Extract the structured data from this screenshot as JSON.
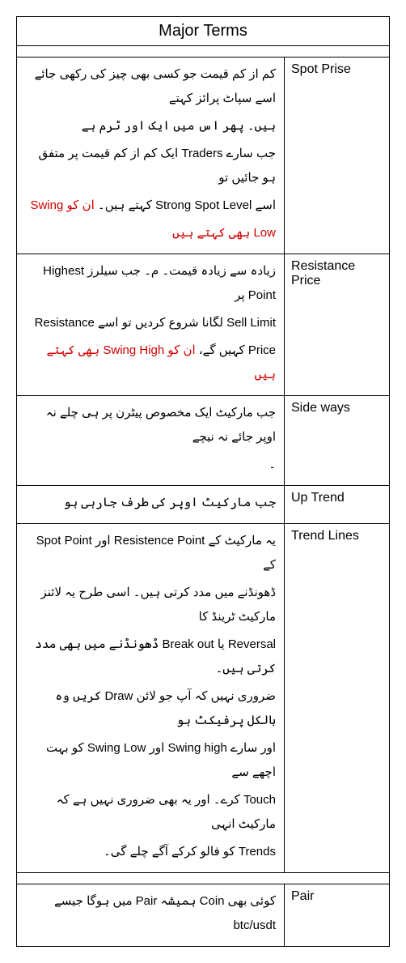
{
  "title": "Major Terms",
  "colors": {
    "border": "#000000",
    "background": "#ffffff",
    "text": "#000000",
    "highlight": "#d00000"
  },
  "rows": [
    {
      "term": "Spot Prise",
      "lines": [
        {
          "segments": [
            {
              "text": "کم از کم قیمت جو کسی بھی چیز کی رکھی جائے اسے سپاٹ پرائز کہتے"
            }
          ]
        },
        {
          "segments": [
            {
              "text": "ہیں۔ پھر اس میں ایک اور ٹرم ہے"
            }
          ]
        },
        {
          "segments": [
            {
              "text": "جب سارے Traders ایک کم از کم قیمت پر متفق ہو جائیں تو"
            }
          ]
        },
        {
          "segments": [
            {
              "text": "اسے Strong Spot Level کہتے ہیں۔ "
            },
            {
              "text": "ان کو Swing",
              "color": "red"
            }
          ]
        },
        {
          "segments": [
            {
              "text": "Low بھی کہتے ہیں",
              "color": "red"
            }
          ]
        }
      ]
    },
    {
      "term": "Resistance Price",
      "lines": [
        {
          "segments": [
            {
              "text": "زیادہ سے زیادہ قیمت۔ م۔ جب سیلرز Highest Point پر"
            }
          ]
        },
        {
          "segments": [
            {
              "text": "Sell Limit لگانا شروع کردیں تو اسے Resistance"
            }
          ]
        },
        {
          "segments": [
            {
              "text": "Price کہیں گے، "
            },
            {
              "text": "ان کو Swing High بھی کہتے ہیں",
              "color": "red"
            }
          ]
        }
      ]
    },
    {
      "term": "Side ways",
      "lines": [
        {
          "segments": [
            {
              "text": "جب مارکیٹ ایک مخصوص پیٹرن پر ہی چلے نہ اوپر جائے نہ نیچے"
            }
          ]
        },
        {
          "segments": [
            {
              "text": "۔"
            }
          ]
        }
      ]
    },
    {
      "term": "Up Trend",
      "lines": [
        {
          "segments": [
            {
              "text": "جب مارکیٹ اوپر کی طرف جارہی ہو"
            }
          ]
        }
      ]
    },
    {
      "term": "Trend Lines",
      "lines": [
        {
          "segments": [
            {
              "text": "یہ مارکیٹ کے Resistence Point اور Spot Point کے"
            }
          ]
        },
        {
          "segments": [
            {
              "text": "ڈھونڈنے میں مدد کرتی ہیں۔ اسی طرح یہ لائنز مارکیٹ ٹرینڈ کا"
            }
          ]
        },
        {
          "segments": [
            {
              "text": "Reversal یا Break out ڈھونڈنے میں بھی مدد کرتی ہیں۔"
            }
          ]
        },
        {
          "segments": [
            {
              "text": "ضروری نہیں کہ آپ جو لائن Draw کریں وہ بالکل پرفیکٹ ہو"
            }
          ]
        },
        {
          "segments": [
            {
              "text": "اور سارے Swing high اور Swing Low کو بہت اچھے سے"
            }
          ]
        },
        {
          "segments": [
            {
              "text": "Touch کرے۔ اور یہ بھی ضروری نہیں ہے کہ مارکیٹ انہی"
            }
          ]
        },
        {
          "segments": [
            {
              "text": "Trends کو فالو کرکے آگے چلے گی۔"
            }
          ]
        }
      ]
    },
    {
      "term": "Pair",
      "lines": [
        {
          "segments": [
            {
              "text": "کوئی بھی Coin ہمیشہ Pair میں ہوگا جیسے btc/usdt"
            }
          ]
        }
      ]
    }
  ]
}
